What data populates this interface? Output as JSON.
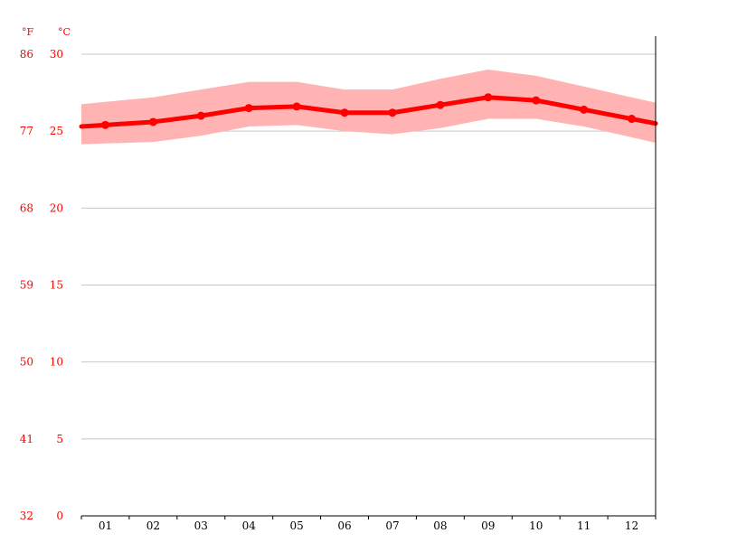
{
  "chart_data": {
    "type": "line",
    "categories": [
      "01",
      "02",
      "03",
      "04",
      "05",
      "06",
      "07",
      "08",
      "09",
      "10",
      "11",
      "12"
    ],
    "series": [
      {
        "values": [
          25.4,
          25.6,
          26.0,
          26.5,
          26.6,
          26.2,
          26.2,
          26.7,
          27.2,
          27.0,
          26.4,
          25.8
        ],
        "color": "#ff0000",
        "markers": true
      }
    ],
    "range_band": {
      "upper": [
        26.9,
        27.2,
        27.7,
        28.2,
        28.2,
        27.7,
        27.7,
        28.4,
        29.0,
        28.6,
        27.9,
        27.2
      ],
      "lower": [
        24.2,
        24.3,
        24.7,
        25.3,
        25.4,
        25.0,
        24.8,
        25.2,
        25.8,
        25.8,
        25.3,
        24.6
      ],
      "color": "#ffb3b3"
    },
    "y_axis_left": {
      "unit_c": "°C",
      "unit_f": "°F",
      "ticks_c": [
        "30",
        "25",
        "20",
        "15",
        "10",
        "5",
        "0"
      ],
      "ticks_f": [
        "86",
        "77",
        "68",
        "59",
        "50",
        "41",
        "32"
      ],
      "ylim": [
        0,
        30
      ]
    },
    "grid": true,
    "label_color": "#ff0000",
    "grid_color": "#c8c8c8"
  }
}
